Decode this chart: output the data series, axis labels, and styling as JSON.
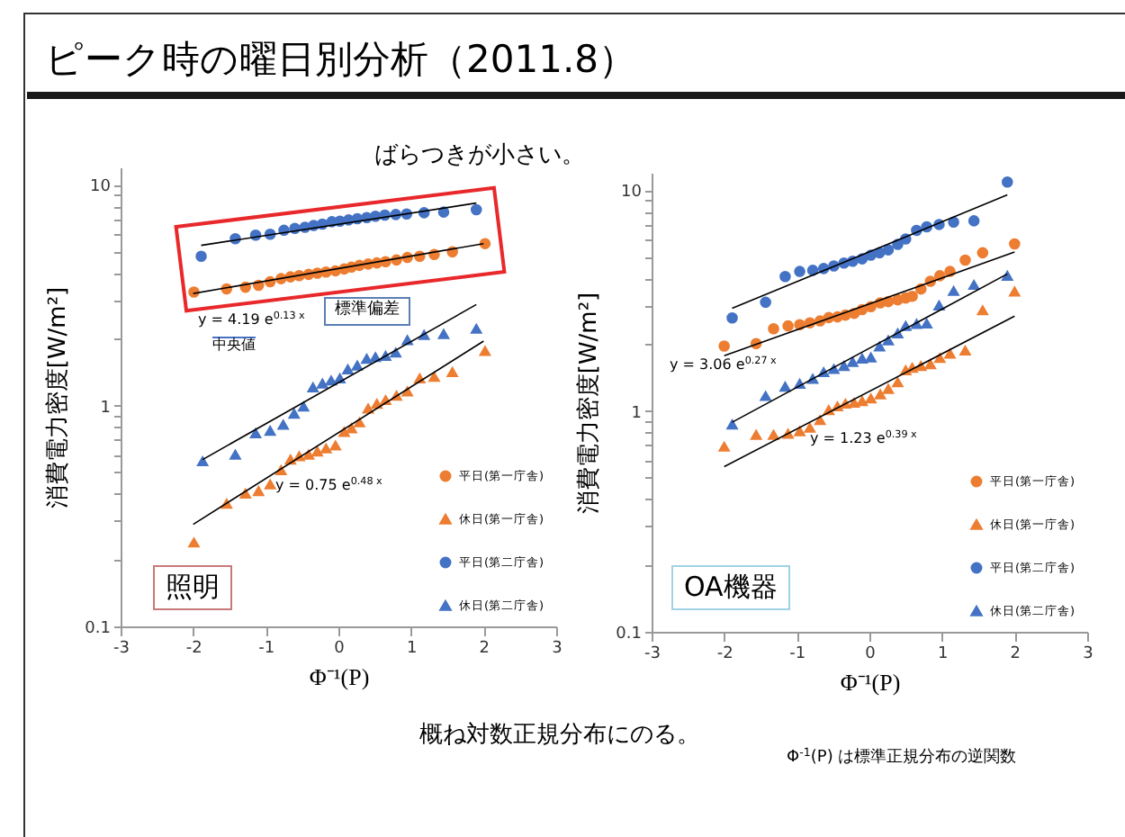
{
  "chart_data": [
    {
      "type": "scatter",
      "title": "ピーク時の曜日別分析（2011.8）",
      "xlabel": "Φ⁻¹(P)",
      "ylabel": "消費電力密度[W/m²]",
      "log": "y",
      "grid": false,
      "legend": "bottom right",
      "xlim": [
        -3,
        3
      ],
      "xticks": [
        -3,
        -2,
        -1,
        0,
        1,
        2,
        3
      ],
      "ylim": [
        0.1,
        12
      ],
      "yticks": [
        0.1,
        {
          "value": 0.2,
          "label": null
        },
        {
          "value": 0.3,
          "label": null
        },
        {
          "value": 0.4,
          "label": null
        },
        {
          "value": 0.5,
          "label": null
        },
        {
          "value": 0.6,
          "label": null
        },
        {
          "value": 0.7,
          "label": null
        },
        {
          "value": 0.8,
          "label": null
        },
        {
          "value": 0.9,
          "label": null
        },
        1,
        {
          "value": 2,
          "label": null
        },
        {
          "value": 3,
          "label": null
        },
        {
          "value": 4,
          "label": null
        },
        {
          "value": 5,
          "label": null
        },
        {
          "value": 6,
          "label": null
        },
        {
          "value": 7,
          "label": null
        },
        {
          "value": 8,
          "label": null
        },
        {
          "value": 9,
          "label": null
        },
        10
      ],
      "annotations": [
        "ばらつきが小さい。",
        "y = 4.19 e$^{0.13 x}$",
        "標準偏差",
        "中央値",
        "y = 0.75 e$^{0.48 x}$",
        "照明"
      ],
      "series": [
        {
          "name": "平日(第一庁舎)",
          "color": "#ed7d31",
          "marker": "circle",
          "x": [
            -1.99,
            -1.54,
            -1.28,
            -1.1,
            -0.94,
            -0.79,
            -0.66,
            -0.54,
            -0.41,
            -0.29,
            -0.17,
            -0.04,
            0.08,
            0.18,
            0.29,
            0.41,
            0.53,
            0.65,
            0.8,
            0.95,
            1.12,
            1.32,
            1.57,
            2.02
          ],
          "values": [
            3.27,
            3.38,
            3.44,
            3.51,
            3.64,
            3.76,
            3.83,
            3.88,
            3.93,
            3.98,
            4.03,
            4.08,
            4.16,
            4.24,
            4.32,
            4.38,
            4.43,
            4.49,
            4.57,
            4.69,
            4.75,
            4.84,
            4.97,
            5.42
          ]
        },
        {
          "name": "休日(第一庁舎)",
          "color": "#ed7d31",
          "marker": "triangle",
          "x": [
            -1.99,
            -1.54,
            -1.28,
            -1.1,
            -0.94,
            -0.79,
            -0.66,
            -0.54,
            -0.41,
            -0.29,
            -0.17,
            -0.04,
            0.08,
            0.18,
            0.29,
            0.41,
            0.53,
            0.65,
            0.8,
            0.95,
            1.12,
            1.32,
            1.57,
            2.02
          ],
          "values": [
            0.24,
            0.36,
            0.4,
            0.41,
            0.44,
            0.51,
            0.57,
            0.59,
            0.6,
            0.62,
            0.64,
            0.66,
            0.76,
            0.79,
            0.84,
            0.97,
            1.02,
            1.06,
            1.11,
            1.16,
            1.33,
            1.35,
            1.42,
            1.77
          ]
        },
        {
          "name": "平日(第二庁舎)",
          "color": "#4472c4",
          "marker": "circle",
          "x": [
            -1.89,
            -1.42,
            -1.14,
            -0.94,
            -0.75,
            -0.6,
            -0.46,
            -0.34,
            -0.22,
            -0.09,
            0.02,
            0.14,
            0.26,
            0.39,
            0.51,
            0.64,
            0.79,
            0.94,
            1.18,
            1.45,
            1.9
          ],
          "values": [
            4.75,
            5.7,
            5.92,
            5.98,
            6.23,
            6.35,
            6.43,
            6.55,
            6.64,
            6.81,
            6.85,
            6.94,
            7.03,
            7.11,
            7.21,
            7.3,
            7.34,
            7.38,
            7.48,
            7.53,
            7.72
          ]
        },
        {
          "name": "休日(第二庁舎)",
          "color": "#4472c4",
          "marker": "triangle",
          "x": [
            -1.87,
            -1.42,
            -1.14,
            -0.94,
            -0.76,
            -0.61,
            -0.48,
            -0.35,
            -0.22,
            -0.1,
            0.02,
            0.13,
            0.26,
            0.39,
            0.51,
            0.65,
            0.79,
            0.95,
            1.18,
            1.45,
            1.9
          ],
          "values": [
            0.56,
            0.6,
            0.75,
            0.77,
            0.82,
            0.92,
            0.99,
            1.21,
            1.26,
            1.3,
            1.33,
            1.46,
            1.52,
            1.63,
            1.66,
            1.68,
            1.74,
            1.98,
            2.09,
            2.11,
            2.23
          ]
        },
        {
          "type": "line",
          "color": "#000000",
          "x": [
            -2,
            2
          ],
          "values": [
            3.22,
            5.42
          ]
        },
        {
          "type": "line",
          "color": "#000000",
          "x": [
            -2,
            2
          ],
          "values": [
            0.29,
            1.96
          ]
        },
        {
          "type": "line",
          "color": "#000000",
          "x": [
            -1.89,
            1.9
          ],
          "values": [
            5.32,
            8.27
          ]
        },
        {
          "type": "line",
          "color": "#000000",
          "x": [
            -1.87,
            1.9
          ],
          "values": [
            0.57,
            2.87
          ]
        }
      ]
    },
    {
      "type": "scatter",
      "xlabel": "Φ⁻¹(P)",
      "ylabel": "消費電力密度[W/m²]",
      "log": "y",
      "grid": false,
      "legend": "bottom right",
      "xlim": [
        -3,
        3
      ],
      "xticks": [
        -3,
        -2,
        -1,
        0,
        1,
        2,
        3
      ],
      "ylim": [
        0.1,
        12
      ],
      "yticks": [
        0.1,
        {
          "value": 0.2,
          "label": null
        },
        {
          "value": 0.3,
          "label": null
        },
        {
          "value": 0.4,
          "label": null
        },
        {
          "value": 0.5,
          "label": null
        },
        {
          "value": 0.6,
          "label": null
        },
        {
          "value": 0.7,
          "label": null
        },
        {
          "value": 0.8,
          "label": null
        },
        {
          "value": 0.9,
          "label": null
        },
        1,
        {
          "value": 2,
          "label": null
        },
        {
          "value": 3,
          "label": null
        },
        {
          "value": 4,
          "label": null
        },
        {
          "value": 5,
          "label": null
        },
        {
          "value": 6,
          "label": null
        },
        {
          "value": 7,
          "label": null
        },
        {
          "value": 8,
          "label": null
        },
        {
          "value": 9,
          "label": null
        },
        10
      ],
      "annotations": [
        "y = 3.06 e$^{0.27 x}$",
        "y = 1.23 e$^{0.39 x}$",
        "OA機器",
        "概ね対数正規分布にのる。",
        "Φ$^{-1}$(P) は標準正規分布の逆関数"
      ],
      "series": [
        {
          "name": "平日(第一庁舎)",
          "color": "#ed7d31",
          "marker": "circle",
          "x": [
            -2,
            -1.56,
            -1.32,
            -1.12,
            -0.96,
            -0.82,
            -0.68,
            -0.56,
            -0.44,
            -0.33,
            -0.21,
            -0.1,
            0.02,
            0.15,
            0.26,
            0.39,
            0.5,
            0.59,
            0.71,
            0.84,
            0.97,
            1.11,
            1.32,
            1.56,
            2
          ],
          "values": [
            1.97,
            2.02,
            2.36,
            2.43,
            2.46,
            2.51,
            2.56,
            2.65,
            2.67,
            2.72,
            2.77,
            2.88,
            2.97,
            3.09,
            3.13,
            3.19,
            3.25,
            3.31,
            3.57,
            3.87,
            4.1,
            4.29,
            4.83,
            5.21,
            5.72
          ]
        },
        {
          "name": "休日(第一庁舎)",
          "color": "#ed7d31",
          "marker": "triangle",
          "x": [
            -2,
            -1.56,
            -1.32,
            -1.12,
            -0.96,
            -0.82,
            -0.68,
            -0.56,
            -0.44,
            -0.33,
            -0.21,
            -0.1,
            0.02,
            0.15,
            0.26,
            0.39,
            0.5,
            0.59,
            0.71,
            0.84,
            0.97,
            1.11,
            1.32,
            1.56,
            2
          ],
          "values": [
            0.69,
            0.78,
            0.78,
            0.79,
            0.81,
            0.84,
            0.91,
            1.01,
            1.05,
            1.08,
            1.09,
            1.11,
            1.14,
            1.19,
            1.26,
            1.35,
            1.53,
            1.57,
            1.6,
            1.63,
            1.74,
            1.82,
            1.88,
            2.86,
            3.48
          ]
        },
        {
          "name": "平日(第二庁舎)",
          "color": "#4472c4",
          "marker": "circle",
          "x": [
            -1.89,
            -1.43,
            -1.16,
            -0.96,
            -0.78,
            -0.63,
            -0.49,
            -0.35,
            -0.23,
            -0.1,
            0.02,
            0.14,
            0.26,
            0.39,
            0.5,
            0.65,
            0.79,
            0.96,
            1.16,
            1.44,
            1.9
          ],
          "values": [
            2.64,
            3.11,
            4.07,
            4.29,
            4.34,
            4.42,
            4.54,
            4.68,
            4.77,
            4.89,
            5.08,
            5.21,
            5.37,
            5.69,
            6.02,
            6.58,
            6.83,
            7,
            7.18,
            7.27,
            10.9
          ]
        },
        {
          "name": "休日(第二庁舎)",
          "color": "#4472c4",
          "marker": "triangle",
          "x": [
            -1.89,
            -1.43,
            -1.16,
            -0.96,
            -0.78,
            -0.63,
            -0.49,
            -0.35,
            -0.23,
            -0.1,
            0.02,
            0.14,
            0.26,
            0.39,
            0.5,
            0.65,
            0.79,
            0.96,
            1.16,
            1.44,
            1.9
          ],
          "values": [
            0.87,
            1.17,
            1.29,
            1.33,
            1.4,
            1.5,
            1.55,
            1.6,
            1.67,
            1.73,
            1.75,
            1.96,
            2.09,
            2.25,
            2.43,
            2.48,
            2.49,
            3.01,
            3.5,
            3.73,
            4.1
          ]
        },
        {
          "type": "line",
          "color": "#000000",
          "x": [
            -2,
            2
          ],
          "values": [
            1.78,
            5.25
          ]
        },
        {
          "type": "line",
          "color": "#000000",
          "x": [
            -2,
            2
          ],
          "values": [
            0.56,
            2.69
          ]
        },
        {
          "type": "line",
          "color": "#000000",
          "x": [
            -1.89,
            1.9
          ],
          "values": [
            2.92,
            9.53
          ]
        },
        {
          "type": "line",
          "color": "#000000",
          "x": [
            -1.89,
            1.9
          ],
          "values": [
            0.89,
            4.18
          ]
        }
      ]
    }
  ]
}
